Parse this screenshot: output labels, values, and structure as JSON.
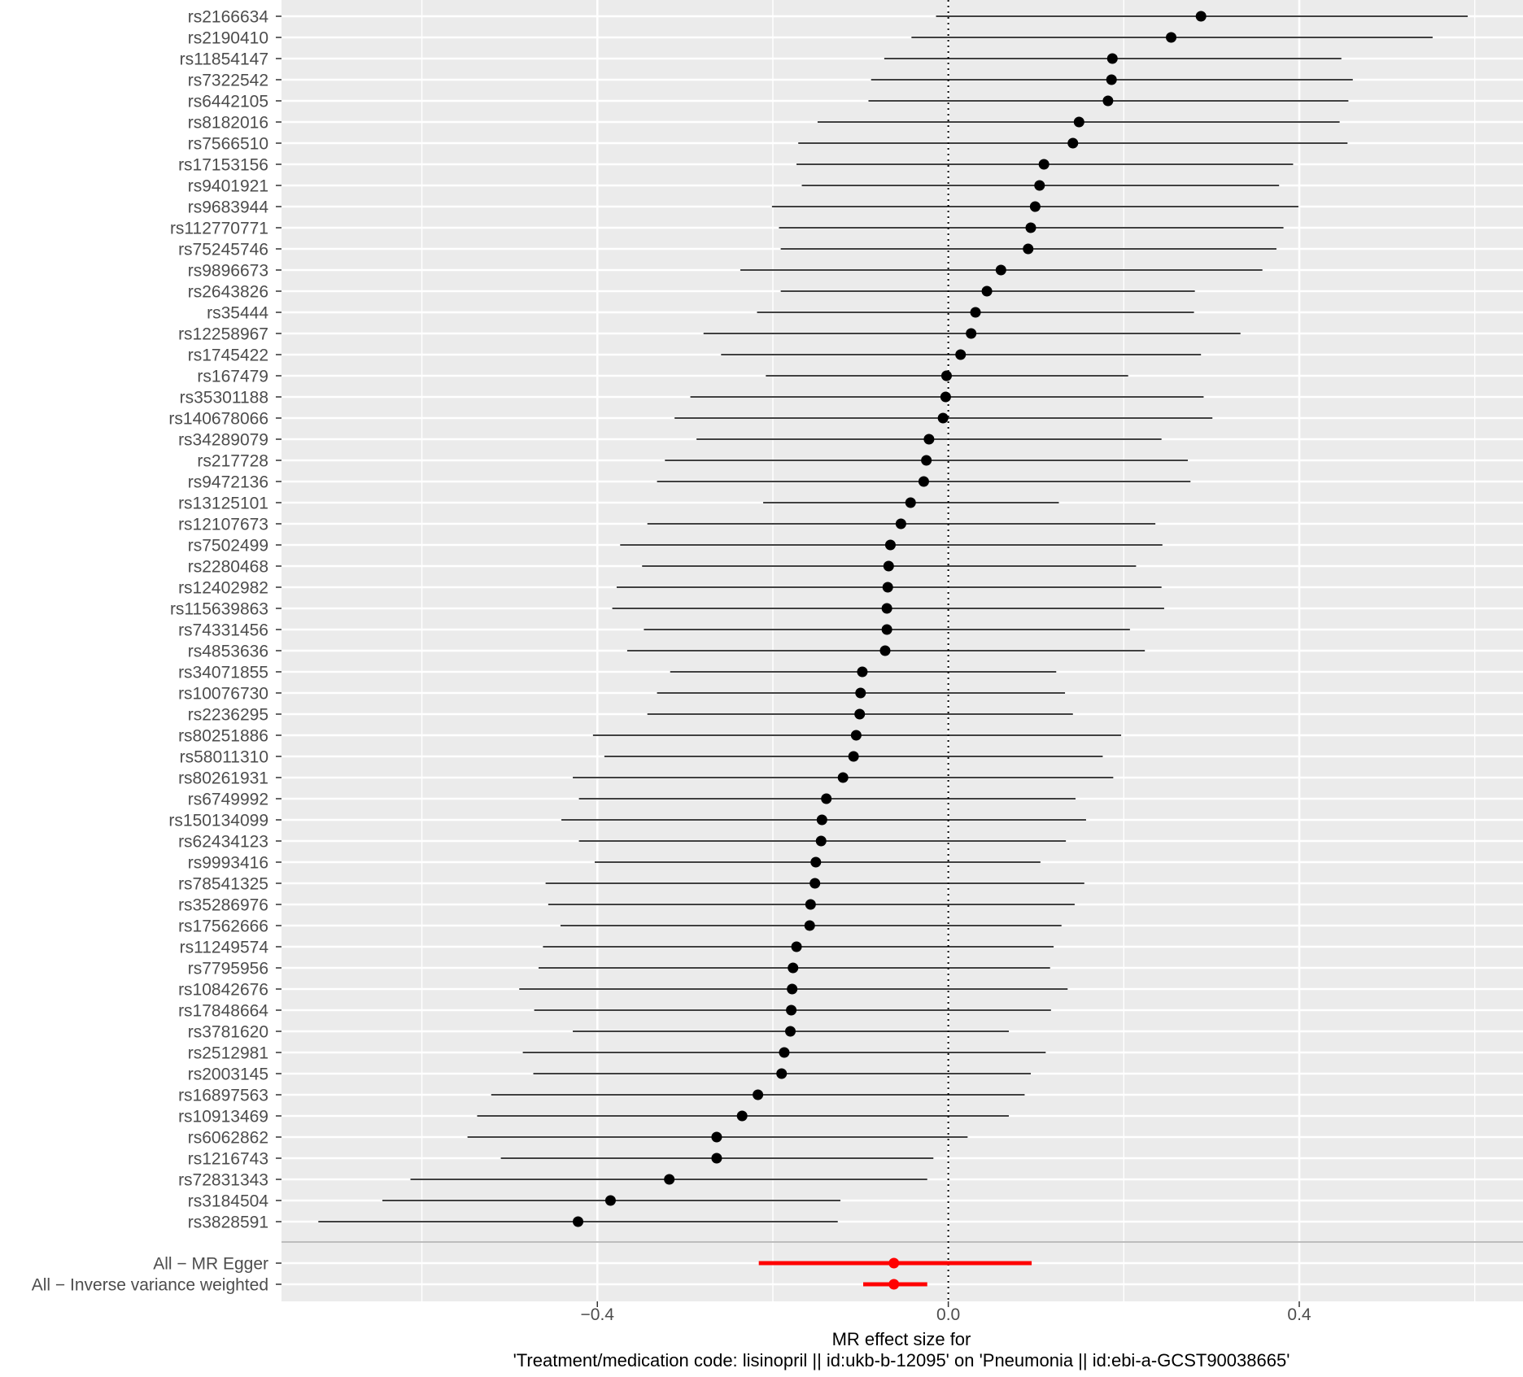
{
  "chart_data": {
    "type": "forest",
    "xlabel_line1": "MR effect size for",
    "xlabel_line2": "'Treatment/medication code: lisinopril || id:ukb-b-12095' on 'Pneumonia || id:ebi-a-GCST90038665'",
    "xlim": [
      -0.76,
      0.655
    ],
    "x_ticks": [
      -0.4,
      0.0,
      0.4
    ],
    "x_tick_labels": [
      "-0.4",
      "0.0",
      "0.4"
    ],
    "reference_line": 0,
    "grid": true,
    "colors": {
      "panel": "#ebebeb",
      "grid": "#ffffff",
      "snp": "#000000",
      "summary": "#ff0000",
      "separator": "#bdbdbd"
    },
    "snps": [
      {
        "label": "rs2166634",
        "b": 0.288,
        "lo": -0.014,
        "hi": 0.592
      },
      {
        "label": "rs2190410",
        "b": 0.254,
        "lo": -0.042,
        "hi": 0.552
      },
      {
        "label": "rs11854147",
        "b": 0.187,
        "lo": -0.073,
        "hi": 0.448
      },
      {
        "label": "rs7322542",
        "b": 0.186,
        "lo": -0.088,
        "hi": 0.461
      },
      {
        "label": "rs6442105",
        "b": 0.182,
        "lo": -0.091,
        "hi": 0.456
      },
      {
        "label": "rs8182016",
        "b": 0.149,
        "lo": -0.149,
        "hi": 0.446
      },
      {
        "label": "rs7566510",
        "b": 0.142,
        "lo": -0.171,
        "hi": 0.455
      },
      {
        "label": "rs17153156",
        "b": 0.109,
        "lo": -0.173,
        "hi": 0.393
      },
      {
        "label": "rs9401921",
        "b": 0.104,
        "lo": -0.167,
        "hi": 0.377
      },
      {
        "label": "rs9683944",
        "b": 0.099,
        "lo": -0.201,
        "hi": 0.399
      },
      {
        "label": "rs112770771",
        "b": 0.094,
        "lo": -0.193,
        "hi": 0.382
      },
      {
        "label": "rs75245746",
        "b": 0.091,
        "lo": -0.191,
        "hi": 0.374
      },
      {
        "label": "rs9896673",
        "b": 0.06,
        "lo": -0.237,
        "hi": 0.358
      },
      {
        "label": "rs2643826",
        "b": 0.044,
        "lo": -0.191,
        "hi": 0.281
      },
      {
        "label": "rs35444",
        "b": 0.031,
        "lo": -0.218,
        "hi": 0.28
      },
      {
        "label": "rs12258967",
        "b": 0.026,
        "lo": -0.279,
        "hi": 0.333
      },
      {
        "label": "rs1745422",
        "b": 0.014,
        "lo": -0.259,
        "hi": 0.288
      },
      {
        "label": "rs167479",
        "b": -0.002,
        "lo": -0.208,
        "hi": 0.205
      },
      {
        "label": "rs35301188",
        "b": -0.003,
        "lo": -0.294,
        "hi": 0.291
      },
      {
        "label": "rs140678066",
        "b": -0.006,
        "lo": -0.312,
        "hi": 0.301
      },
      {
        "label": "rs34289079",
        "b": -0.022,
        "lo": -0.287,
        "hi": 0.243
      },
      {
        "label": "rs217728",
        "b": -0.025,
        "lo": -0.323,
        "hi": 0.273
      },
      {
        "label": "rs9472136",
        "b": -0.028,
        "lo": -0.332,
        "hi": 0.276
      },
      {
        "label": "rs13125101",
        "b": -0.043,
        "lo": -0.211,
        "hi": 0.126
      },
      {
        "label": "rs12107673",
        "b": -0.054,
        "lo": -0.343,
        "hi": 0.236
      },
      {
        "label": "rs7502499",
        "b": -0.066,
        "lo": -0.374,
        "hi": 0.244
      },
      {
        "label": "rs2280468",
        "b": -0.068,
        "lo": -0.349,
        "hi": 0.214
      },
      {
        "label": "rs12402982",
        "b": -0.069,
        "lo": -0.378,
        "hi": 0.243
      },
      {
        "label": "rs115639863",
        "b": -0.07,
        "lo": -0.383,
        "hi": 0.246
      },
      {
        "label": "rs74331456",
        "b": -0.07,
        "lo": -0.347,
        "hi": 0.207
      },
      {
        "label": "rs4853636",
        "b": -0.072,
        "lo": -0.366,
        "hi": 0.224
      },
      {
        "label": "rs34071855",
        "b": -0.098,
        "lo": -0.317,
        "hi": 0.123
      },
      {
        "label": "rs10076730",
        "b": -0.1,
        "lo": -0.332,
        "hi": 0.133
      },
      {
        "label": "rs2236295",
        "b": -0.101,
        "lo": -0.343,
        "hi": 0.142
      },
      {
        "label": "rs80251886",
        "b": -0.105,
        "lo": -0.405,
        "hi": 0.197
      },
      {
        "label": "rs58011310",
        "b": -0.108,
        "lo": -0.392,
        "hi": 0.176
      },
      {
        "label": "rs80261931",
        "b": -0.12,
        "lo": -0.428,
        "hi": 0.188
      },
      {
        "label": "rs6749992",
        "b": -0.139,
        "lo": -0.421,
        "hi": 0.145
      },
      {
        "label": "rs150134099",
        "b": -0.144,
        "lo": -0.441,
        "hi": 0.157
      },
      {
        "label": "rs62434123",
        "b": -0.145,
        "lo": -0.421,
        "hi": 0.134
      },
      {
        "label": "rs9993416",
        "b": -0.151,
        "lo": -0.403,
        "hi": 0.105
      },
      {
        "label": "rs78541325",
        "b": -0.152,
        "lo": -0.459,
        "hi": 0.155
      },
      {
        "label": "rs35286976",
        "b": -0.157,
        "lo": -0.456,
        "hi": 0.144
      },
      {
        "label": "rs17562666",
        "b": -0.158,
        "lo": -0.442,
        "hi": 0.129
      },
      {
        "label": "rs11249574",
        "b": -0.173,
        "lo": -0.462,
        "hi": 0.12
      },
      {
        "label": "rs7795956",
        "b": -0.177,
        "lo": -0.467,
        "hi": 0.116
      },
      {
        "label": "rs10842676",
        "b": -0.178,
        "lo": -0.489,
        "hi": 0.136
      },
      {
        "label": "rs17848664",
        "b": -0.179,
        "lo": -0.472,
        "hi": 0.117
      },
      {
        "label": "rs3781620",
        "b": -0.18,
        "lo": -0.428,
        "hi": 0.069
      },
      {
        "label": "rs2512981",
        "b": -0.187,
        "lo": -0.485,
        "hi": 0.111
      },
      {
        "label": "rs2003145",
        "b": -0.19,
        "lo": -0.473,
        "hi": 0.094
      },
      {
        "label": "rs16897563",
        "b": -0.217,
        "lo": -0.521,
        "hi": 0.087
      },
      {
        "label": "rs10913469",
        "b": -0.235,
        "lo": -0.537,
        "hi": 0.069
      },
      {
        "label": "rs6062862",
        "b": -0.264,
        "lo": -0.548,
        "hi": 0.022
      },
      {
        "label": "rs1216743",
        "b": -0.264,
        "lo": -0.51,
        "hi": -0.017
      },
      {
        "label": "rs72831343",
        "b": -0.318,
        "lo": -0.613,
        "hi": -0.024
      },
      {
        "label": "rs3184504",
        "b": -0.385,
        "lo": -0.645,
        "hi": -0.123
      },
      {
        "label": "rs3828591",
        "b": -0.422,
        "lo": -0.718,
        "hi": -0.126
      }
    ],
    "summaries": [
      {
        "label": "All − MR Egger",
        "b": -0.062,
        "lo": -0.216,
        "hi": 0.095
      },
      {
        "label": "All − Inverse variance weighted",
        "b": -0.062,
        "lo": -0.097,
        "hi": -0.024
      }
    ]
  }
}
